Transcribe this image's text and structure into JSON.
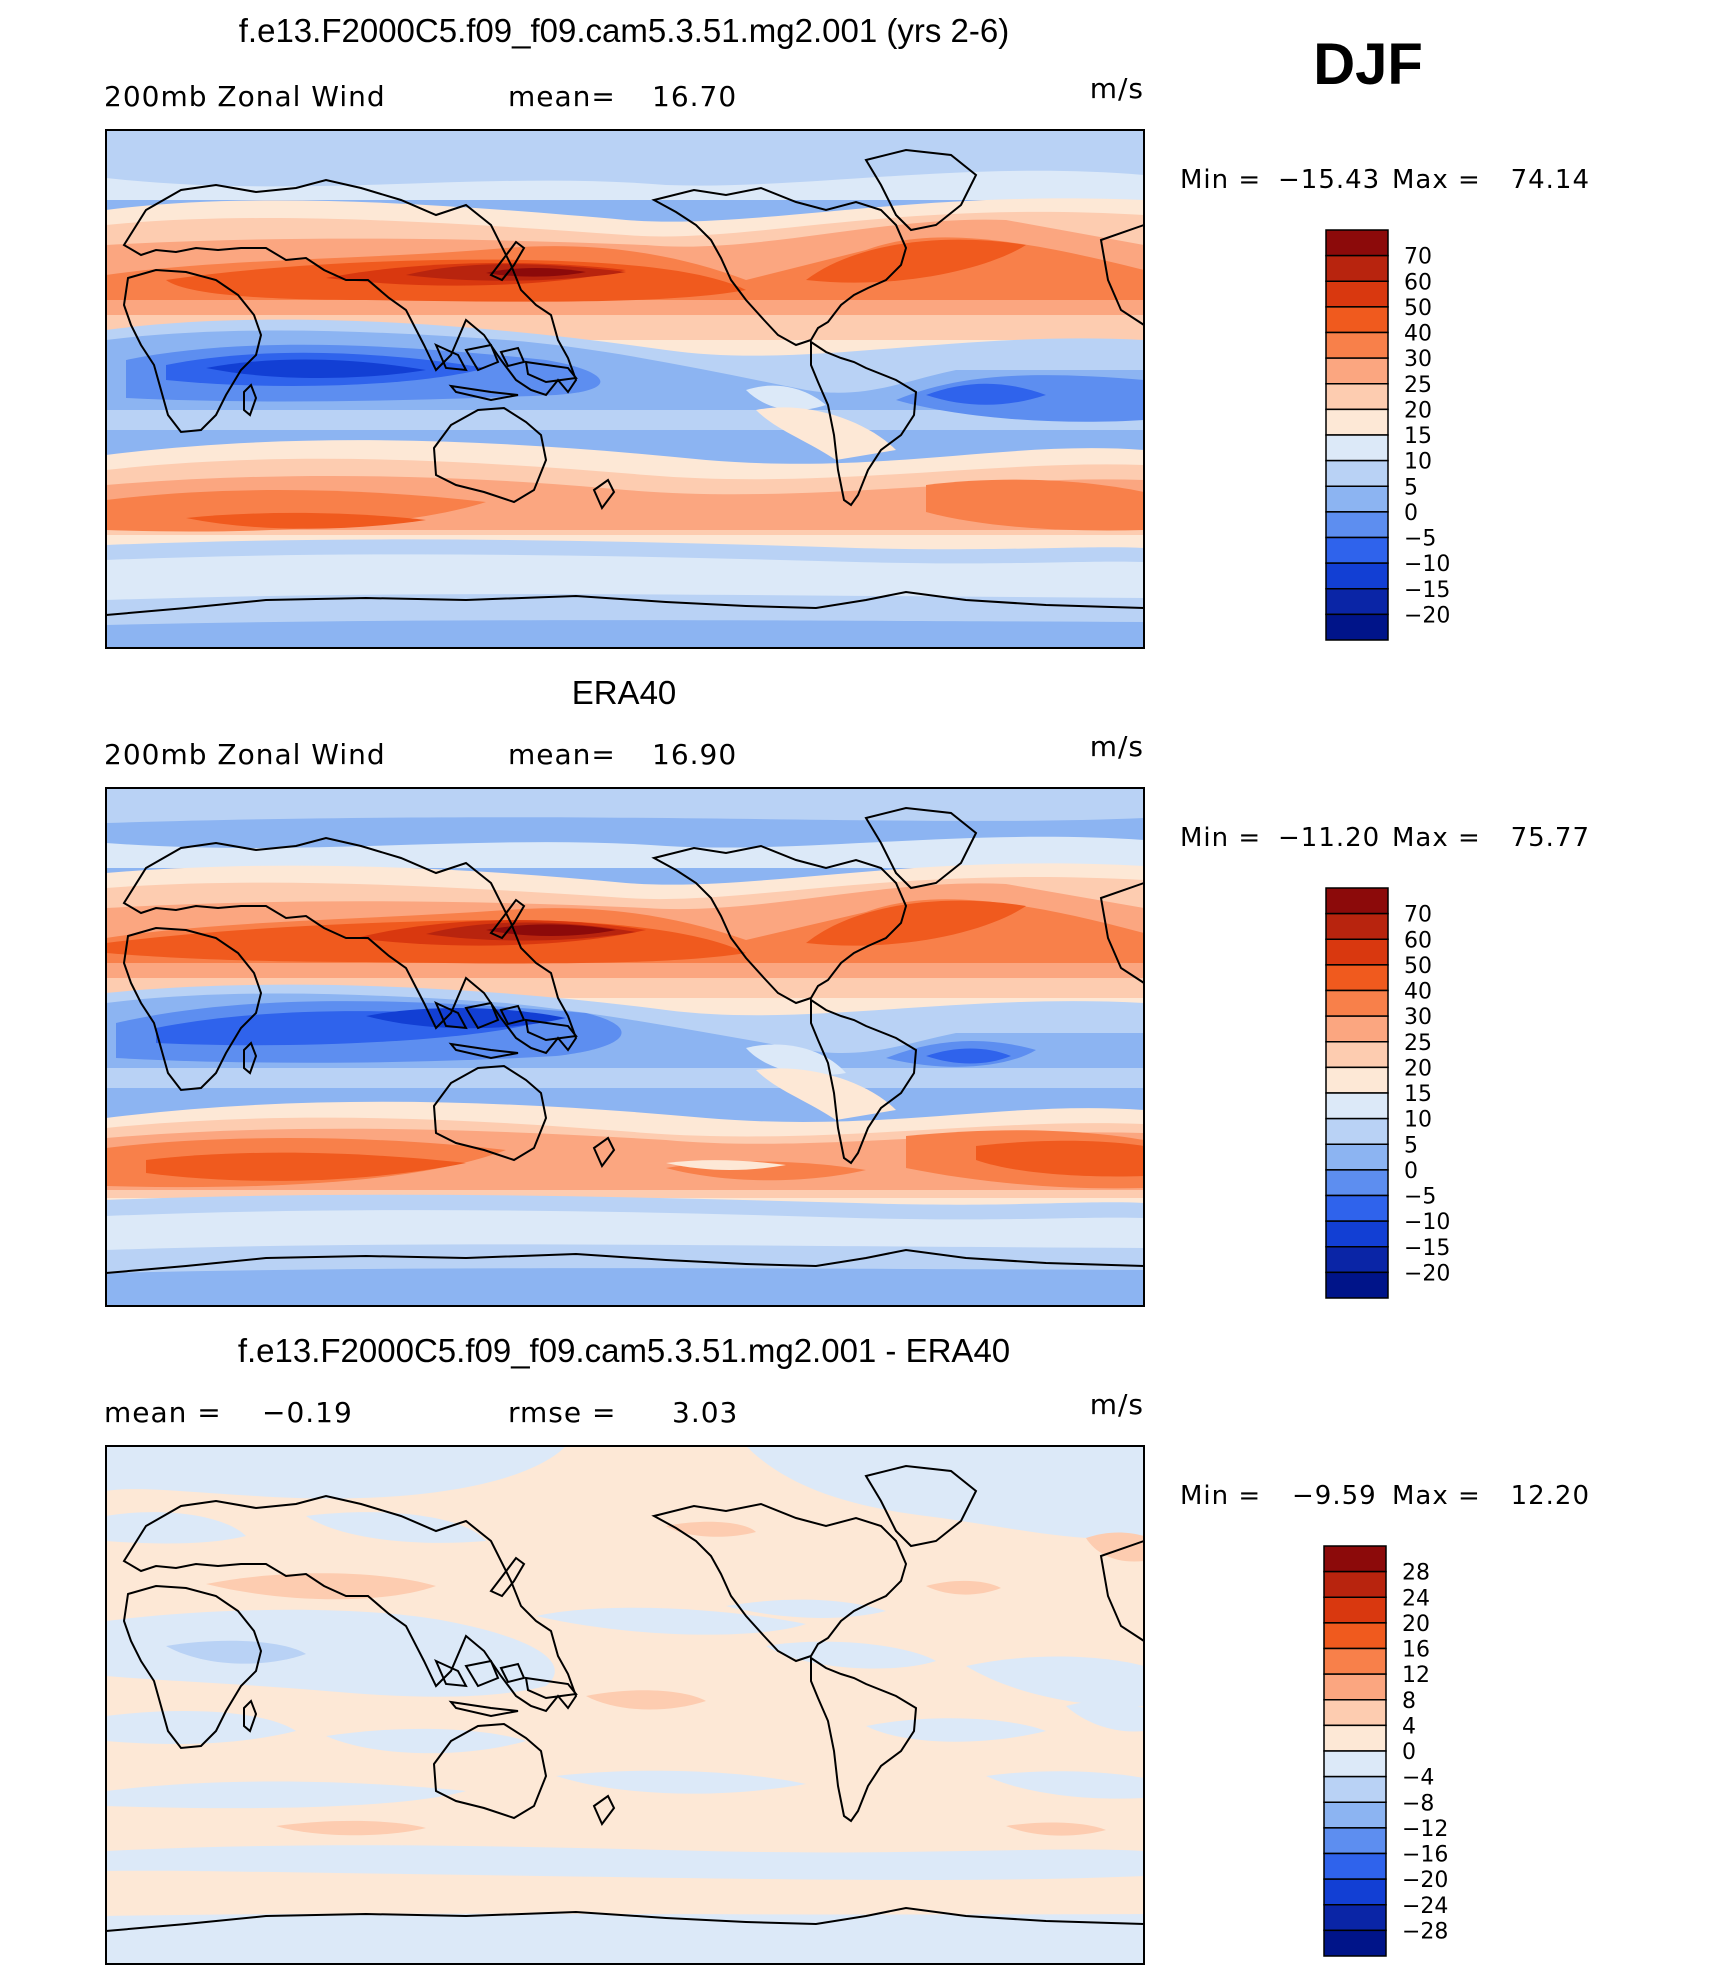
{
  "season": "DJF",
  "panels": [
    {
      "id": "model",
      "title": "f.e13.F2000C5.f09_f09.cam5.3.51.mg2.001 (yrs 2-6)",
      "left_label": "200mb Zonal Wind",
      "center_label": "mean=",
      "center_value": "16.70",
      "units": "m/s",
      "min_label": "Min =",
      "min_value": "−15.43",
      "max_label": "Max =",
      "max_value": "74.14",
      "colorbar": {
        "levels": [
          "70",
          "60",
          "50",
          "40",
          "30",
          "25",
          "20",
          "15",
          "10",
          "5",
          "0",
          "−5",
          "−10",
          "−15",
          "−20"
        ],
        "colors": [
          "#8c0a0a",
          "#b8240e",
          "#d9380f",
          "#f05a1e",
          "#f8804a",
          "#fba680",
          "#fdccb0",
          "#fde8d6",
          "#dce9f8",
          "#b9d2f5",
          "#8cb4f2",
          "#5d8ef0",
          "#2f63ec",
          "#123fd4",
          "#0a25a6",
          "#001489"
        ]
      }
    },
    {
      "id": "obs",
      "title": "ERA40",
      "left_label": "200mb Zonal Wind",
      "center_label": "mean=",
      "center_value": "16.90",
      "units": "m/s",
      "min_label": "Min =",
      "min_value": "−11.20",
      "max_label": "Max =",
      "max_value": "75.77",
      "colorbar": {
        "levels": [
          "70",
          "60",
          "50",
          "40",
          "30",
          "25",
          "20",
          "15",
          "10",
          "5",
          "0",
          "−5",
          "−10",
          "−15",
          "−20"
        ],
        "colors": [
          "#8c0a0a",
          "#b8240e",
          "#d9380f",
          "#f05a1e",
          "#f8804a",
          "#fba680",
          "#fdccb0",
          "#fde8d6",
          "#dce9f8",
          "#b9d2f5",
          "#8cb4f2",
          "#5d8ef0",
          "#2f63ec",
          "#123fd4",
          "#0a25a6",
          "#001489"
        ]
      }
    },
    {
      "id": "diff",
      "title": "f.e13.F2000C5.f09_f09.cam5.3.51.mg2.001 - ERA40",
      "left_label": "mean =",
      "left_value": "−0.19",
      "center_label": "rmse =",
      "center_value": "3.03",
      "units": "m/s",
      "min_label": "Min =",
      "min_value": "−9.59",
      "max_label": "Max =",
      "max_value": "12.20",
      "colorbar": {
        "levels": [
          "28",
          "24",
          "20",
          "16",
          "12",
          "8",
          "4",
          "0",
          "−4",
          "−8",
          "−12",
          "−16",
          "−20",
          "−24",
          "−28"
        ],
        "colors": [
          "#8c0a0a",
          "#b8240e",
          "#d9380f",
          "#f05a1e",
          "#f8804a",
          "#fba680",
          "#fdccb0",
          "#fde8d6",
          "#dce9f8",
          "#b9d2f5",
          "#8cb4f2",
          "#5d8ef0",
          "#2f63ec",
          "#123fd4",
          "#0a25a6",
          "#001489"
        ]
      }
    }
  ]
}
